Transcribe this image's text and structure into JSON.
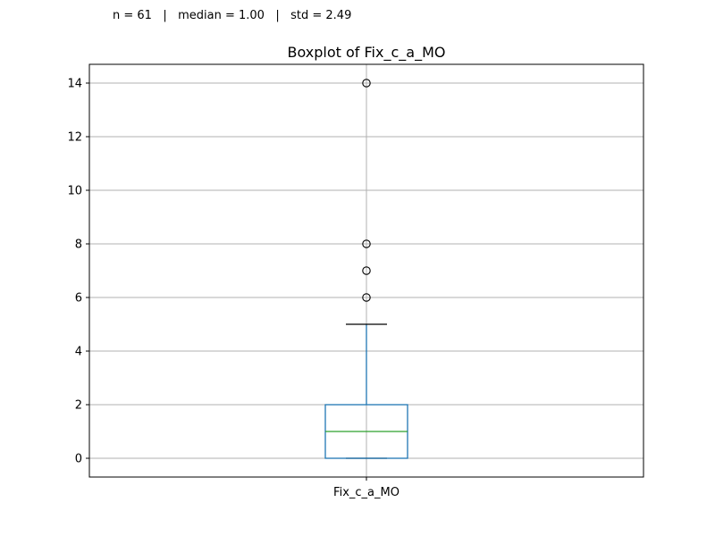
{
  "stats_text": "n = 61   |   median = 1.00   |   std = 2.49",
  "chart_data": {
    "type": "boxplot",
    "title": "Boxplot of Fix_c_a_MO",
    "categories": [
      "Fix_c_a_MO"
    ],
    "yticks": [
      0,
      2,
      4,
      6,
      8,
      10,
      12,
      14
    ],
    "ylim": [
      -0.7,
      14.7
    ],
    "grid": true,
    "box": {
      "whisker_low": 0,
      "q1": 0,
      "median": 1,
      "q3": 2,
      "whisker_high": 5,
      "outliers": [
        6,
        7,
        8,
        14
      ]
    },
    "colors": {
      "box": "#1f77b4",
      "median": "#2ca02c",
      "whisker_cap": "#000000",
      "grid": "#b0b0b0"
    }
  }
}
